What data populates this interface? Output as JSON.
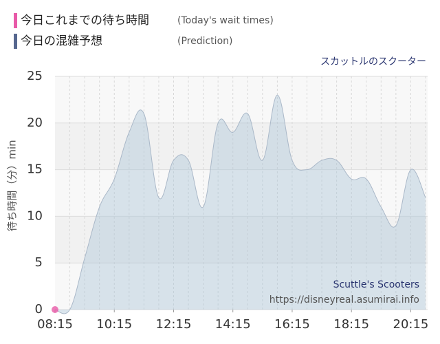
{
  "chart_data": {
    "type": "area",
    "subtitle": "スカットルのスクーター",
    "ylabel": "待ち時間（分）min",
    "annotations": [
      "Scuttle's Scooters",
      "https://disneyreal.asumirai.info"
    ],
    "x": [
      "08:15",
      "08:45",
      "09:15",
      "09:45",
      "10:15",
      "10:45",
      "11:15",
      "11:45",
      "12:15",
      "12:45",
      "13:15",
      "13:45",
      "14:15",
      "14:45",
      "15:15",
      "15:45",
      "16:15",
      "16:45",
      "17:15",
      "17:45",
      "18:15",
      "18:45",
      "19:15",
      "19:45",
      "20:15",
      "20:45"
    ],
    "series": [
      {
        "name": "今日これまでの待ち時間",
        "name_en": "(Today's wait times)",
        "color": "#e85aa8",
        "x": [
          "08:15"
        ],
        "values": [
          0
        ]
      },
      {
        "name": "今日の混雑予想",
        "name_en": "(Prediction)",
        "color": "#56678f",
        "values": [
          0,
          0,
          5.5,
          11,
          14,
          19,
          21,
          12,
          16,
          16,
          11,
          20,
          19,
          21,
          16,
          23,
          16,
          15,
          16,
          16,
          14,
          14,
          11,
          9,
          15,
          12
        ]
      }
    ],
    "xlim": [
      "08:15",
      "20:45"
    ],
    "xticks": [
      "08:15",
      "10:15",
      "12:15",
      "14:15",
      "16:15",
      "18:15",
      "20:15"
    ],
    "ylim": [
      0,
      25
    ],
    "yticks": [
      0,
      5,
      10,
      15,
      20,
      25
    ],
    "grid": true
  }
}
